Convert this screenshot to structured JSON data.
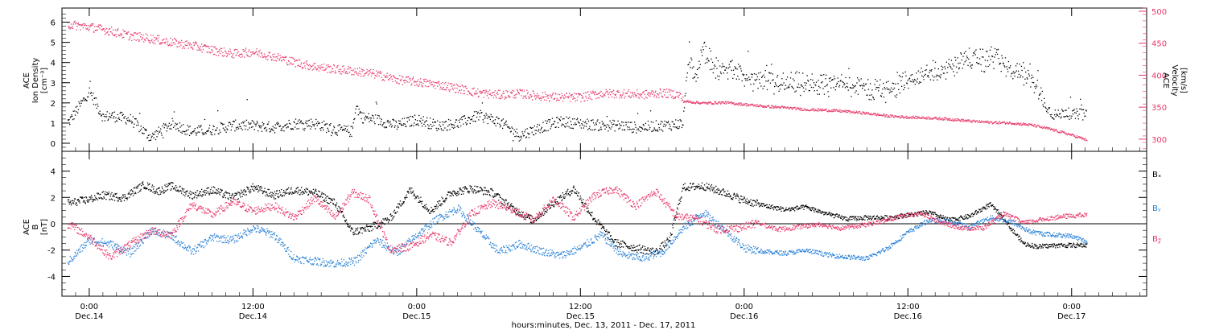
{
  "chart_data": [
    {
      "type": "scatter",
      "panel": "top",
      "ylabel_left": [
        "ACE",
        "Ion Density",
        "[cm⁻³]"
      ],
      "ylabel_right": [
        "ACE",
        "Velocity",
        "[km/s]"
      ],
      "left_ylim": [
        -0.4,
        6.7
      ],
      "left_yticks": [
        "0",
        "1",
        "2",
        "3",
        "4",
        "5",
        "6"
      ],
      "right_ylim": [
        281,
        505
      ],
      "right_yticks": [
        "300",
        "350",
        "400",
        "450",
        "500"
      ],
      "colors": {
        "density": "#000000",
        "velocity": "#e8396a"
      },
      "series": [
        {
          "name": "",
          "axis": "left",
          "x": [
            -3,
            0,
            2,
            3,
            6,
            9,
            12,
            15,
            18,
            21,
            24,
            27,
            30,
            33,
            36,
            38.5,
            39,
            40,
            42,
            45,
            48,
            51,
            54,
            57,
            60,
            63,
            66,
            69,
            72,
            75,
            78,
            80,
            84,
            87,
            87.5,
            88,
            89,
            90,
            92,
            94,
            96,
            99,
            102,
            105,
            108,
            111,
            113,
            115,
            116,
            117,
            118,
            120,
            122,
            125,
            128,
            131,
            133,
            134,
            135,
            138,
            140,
            141,
            142,
            143,
            144,
            145,
            146
          ],
          "values": [
            1.1,
            2.6,
            1.3,
            1.4,
            1.2,
            0.3,
            1.0,
            0.6,
            0.7,
            0.9,
            0.9,
            0.8,
            1.0,
            1.0,
            0.7,
            0.6,
            1.9,
            1.3,
            1.2,
            0.9,
            1.2,
            0.9,
            1.0,
            1.4,
            1.1,
            0.4,
            0.8,
            1.1,
            1.0,
            0.9,
            0.9,
            0.8,
            0.9,
            1.0,
            3.5,
            3.9,
            3.4,
            4.6,
            3.6,
            3.7,
            3.3,
            3.0,
            3.0,
            2.9,
            2.9,
            3.0,
            2.8,
            2.6,
            2.7,
            2.6,
            2.9,
            3.1,
            3.4,
            3.6,
            4.2,
            4.1,
            4.4,
            3.9,
            3.5,
            3.4,
            2.0,
            1.5,
            1.4,
            1.6,
            1.4,
            1.5,
            1.4
          ]
        },
        {
          "name": "",
          "axis": "right",
          "x": [
            -3,
            0,
            3,
            6,
            9,
            12,
            15,
            18,
            21,
            24,
            27,
            30,
            33,
            36,
            39,
            42,
            45,
            48,
            51,
            54,
            57,
            60,
            63,
            66,
            69,
            72,
            75,
            78,
            81,
            84,
            86.5,
            87,
            90,
            93,
            96,
            99,
            102,
            105,
            108,
            111,
            114,
            117,
            120,
            123,
            126,
            129,
            132,
            135,
            138,
            141,
            144,
            146
          ],
          "values": [
            480,
            476,
            470,
            462,
            458,
            452,
            447,
            440,
            434,
            437,
            430,
            421,
            414,
            410,
            407,
            402,
            394,
            390,
            386,
            380,
            373,
            370,
            372,
            368,
            366,
            366,
            372,
            372,
            370,
            373,
            370,
            360,
            357,
            358,
            355,
            352,
            350,
            347,
            346,
            344,
            341,
            337,
            335,
            334,
            332,
            329,
            327,
            326,
            323,
            316,
            307,
            300
          ]
        }
      ]
    },
    {
      "type": "scatter",
      "panel": "bottom",
      "ylabel": [
        "ACE",
        "B",
        "[nT]"
      ],
      "ylim": [
        -5.5,
        5.5
      ],
      "yticks": [
        "-4",
        "-2",
        "0",
        "2",
        "4"
      ],
      "legend_placement": "right",
      "series": [
        {
          "name": "Bₓ",
          "color": "#000000",
          "x": [
            -3,
            0,
            2,
            5,
            8,
            10,
            12,
            15,
            18,
            21,
            24,
            27,
            30,
            33,
            36,
            38.5,
            41,
            44,
            47,
            50,
            53,
            56,
            59,
            62,
            65,
            68,
            71,
            74,
            77,
            80,
            83,
            85,
            87,
            90,
            93,
            96,
            99,
            102,
            105,
            108,
            111,
            114,
            117,
            120,
            123,
            126,
            129,
            132,
            134,
            135,
            137,
            139,
            142,
            146
          ],
          "values": [
            1.6,
            1.9,
            2.2,
            2.0,
            3.0,
            2.5,
            2.9,
            2.2,
            2.6,
            2.0,
            2.8,
            2.2,
            2.6,
            2.4,
            1.6,
            -0.6,
            -0.3,
            0.4,
            2.6,
            1.0,
            2.4,
            2.7,
            2.4,
            1.2,
            0.3,
            1.6,
            2.7,
            0.4,
            -1.4,
            -1.8,
            -2.1,
            -1.2,
            2.8,
            2.9,
            2.4,
            1.8,
            1.4,
            1.1,
            1.3,
            0.8,
            0.4,
            0.5,
            0.5,
            0.7,
            0.9,
            0.3,
            0.6,
            1.5,
            0.5,
            -0.3,
            -1.5,
            -1.7,
            -1.6,
            -1.6
          ]
        },
        {
          "name": "Bᵧ",
          "color": "#2a82d8",
          "x": [
            -3,
            0,
            3,
            6,
            9,
            12,
            15,
            18,
            21,
            24,
            27,
            30,
            33,
            36,
            39,
            42,
            45,
            48,
            51,
            54,
            57,
            60,
            63,
            66,
            69,
            72,
            75,
            78,
            81,
            84,
            87,
            90,
            93,
            96,
            99,
            102,
            105,
            108,
            111,
            114,
            117,
            120,
            123,
            126,
            129,
            132,
            135,
            138,
            141,
            144,
            146
          ],
          "values": [
            -2.8,
            -1.2,
            -1.5,
            -2.2,
            -0.5,
            -0.9,
            -2.1,
            -1.0,
            -1.2,
            -0.3,
            -0.8,
            -2.6,
            -2.8,
            -3.0,
            -2.8,
            -1.2,
            -2.2,
            -0.8,
            0.4,
            1.2,
            -0.5,
            -2.1,
            -1.5,
            -2.0,
            -2.4,
            -1.8,
            -0.8,
            -2.3,
            -2.6,
            -2.1,
            -0.3,
            0.9,
            -0.4,
            -1.8,
            -2.1,
            -2.2,
            -2.0,
            -2.3,
            -2.5,
            -2.6,
            -1.8,
            -0.6,
            0.3,
            0.2,
            -0.2,
            0.5,
            0.2,
            -0.6,
            -0.8,
            -0.9,
            -1.3
          ]
        },
        {
          "name": "B𝓏",
          "color": "#e8396a",
          "x": [
            -3,
            0,
            3,
            6,
            9,
            12,
            15,
            18,
            21,
            24,
            27,
            30,
            33,
            36,
            38.5,
            41,
            44,
            47,
            50,
            53,
            56,
            59,
            62,
            65,
            68,
            71,
            74,
            77,
            80,
            83,
            86,
            89,
            92,
            95,
            98,
            101,
            104,
            107,
            110,
            113,
            116,
            119,
            122,
            125,
            128,
            131,
            134,
            137,
            140,
            143,
            146
          ],
          "values": [
            0.0,
            -1.0,
            -2.5,
            -1.5,
            -0.5,
            -0.8,
            1.5,
            0.7,
            1.7,
            1.0,
            1.4,
            0.5,
            2.0,
            0.5,
            2.4,
            1.9,
            -1.9,
            -1.7,
            -0.8,
            -1.4,
            0.8,
            1.6,
            1.1,
            0.3,
            1.9,
            0.5,
            2.2,
            2.7,
            1.4,
            2.5,
            0.6,
            0.4,
            -0.4,
            -0.3,
            0.1,
            -0.4,
            -0.2,
            0.0,
            -0.3,
            -0.1,
            0.2,
            0.6,
            0.8,
            0.1,
            -0.3,
            -0.3,
            0.8,
            0.1,
            0.4,
            0.6,
            0.7
          ]
        }
      ]
    }
  ],
  "x_axis": {
    "xlim": [
      -4,
      155
    ],
    "major_ticks": [
      {
        "x": 0,
        "time": "0:00",
        "date": "Dec.14"
      },
      {
        "x": 24,
        "time": "12:00",
        "date": "Dec.14"
      },
      {
        "x": 48,
        "time": "0:00",
        "date": "Dec.15"
      },
      {
        "x": 72,
        "time": "12:00",
        "date": "Dec.15"
      },
      {
        "x": 96,
        "time": "0:00",
        "date": "Dec.16"
      },
      {
        "x": 120,
        "time": "12:00",
        "date": "Dec.16"
      },
      {
        "x": 144,
        "time": "0:00",
        "date": "Dec.17"
      }
    ],
    "title": "hours:minutes, Dec. 13, 2011 - Dec. 17, 2011"
  }
}
